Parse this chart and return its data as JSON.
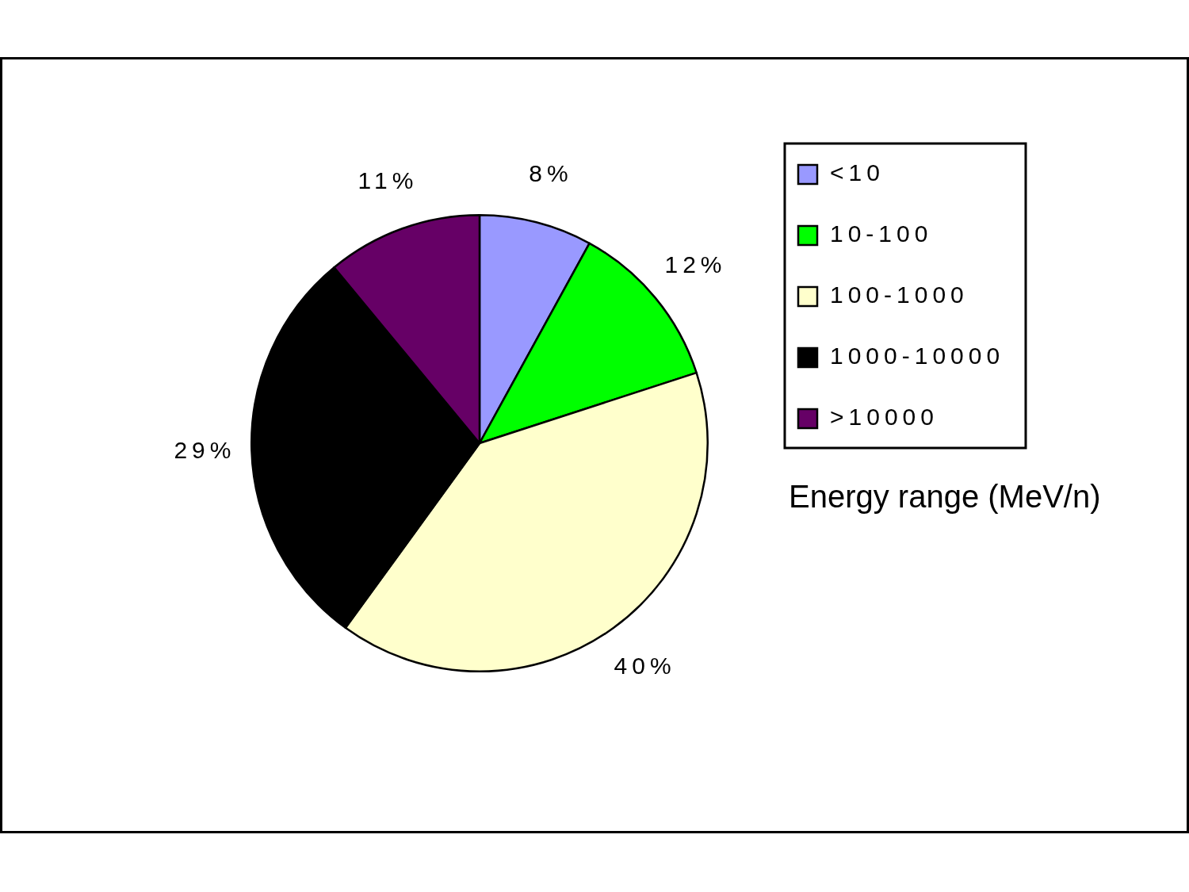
{
  "chart_data": {
    "type": "pie",
    "categories": [
      "<10",
      "10-100",
      "100-1000",
      "1000-10000",
      ">10000"
    ],
    "values": [
      8,
      12,
      40,
      29,
      11
    ],
    "colors": [
      "#9999ff",
      "#00ff00",
      "#ffffcc",
      "#000000",
      "#660066"
    ],
    "value_labels": [
      "8%",
      "12%",
      "40%",
      "29%",
      "11%"
    ],
    "legend": "right",
    "legend_title": "Energy range (MeV/n)"
  }
}
